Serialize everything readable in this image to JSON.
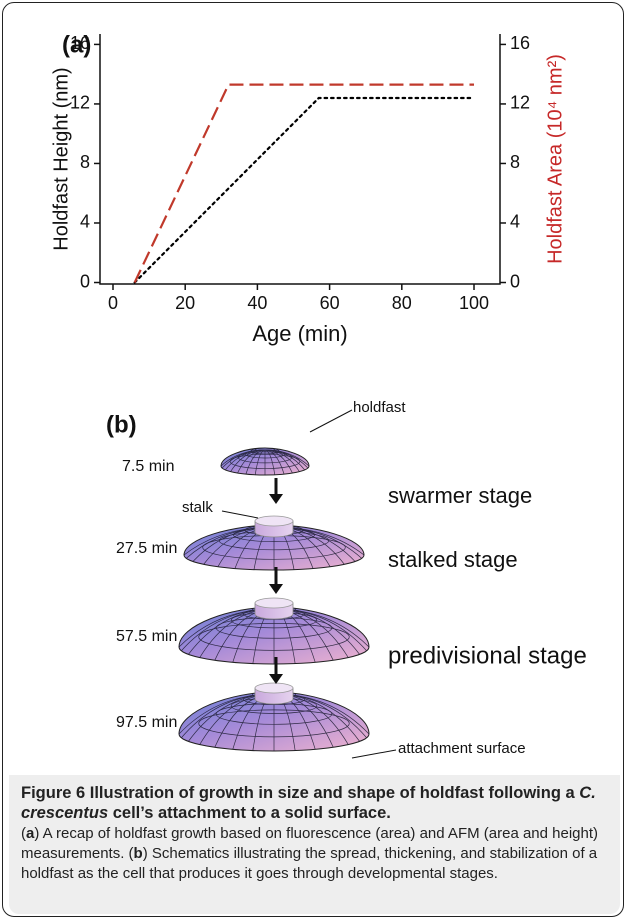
{
  "chart_data": {
    "type": "line",
    "panel_label": "(a)",
    "x_label": "Age (min)",
    "y_label": "Holdfast Height (nm)",
    "y2_label": "Holdfast Area (10⁴ nm²)",
    "y2_label_color": "#c62828",
    "xlim": [
      -3.6,
      107.2
    ],
    "xticks": [
      0,
      20,
      40,
      60,
      80,
      100
    ],
    "ylim": [
      -0.1,
      16.7
    ],
    "yticks": [
      0,
      4,
      8,
      12,
      16
    ],
    "y2lim": [
      -0.1,
      16.7
    ],
    "y2ticks": [
      0,
      4,
      8,
      12,
      16
    ],
    "grid": false,
    "series": [
      {
        "color": "#000000",
        "dash": "dotted",
        "x": [
          6,
          57,
          100
        ],
        "values": [
          0,
          12.4,
          12.4
        ]
      },
      {
        "color": "#c0392b",
        "dash": "dashed",
        "axis": "y2",
        "x": [
          6,
          32,
          100
        ],
        "values": [
          0,
          13.3,
          13.3
        ]
      }
    ]
  },
  "schematic": {
    "panel_label": "(b)",
    "times": [
      "7.5 min",
      "27.5 min",
      "57.5 min",
      "97.5 min"
    ],
    "holdfast_label": "holdfast",
    "stalk_label": "stalk",
    "surface_label": "attachment surface",
    "stages": [
      "swarmer stage",
      "stalked stage",
      "predivisional stage"
    ]
  },
  "caption": {
    "title": [
      "Figure 6 Illustration of growth in size and shape of holdfast following a ",
      "C. crescentus",
      " cell’s attachment to a solid surface."
    ],
    "body": [
      "(",
      "a",
      ") A recap of holdfast growth based on fluorescence (area) and AFM (area and height) measurements. (",
      "b",
      ") Schematics illustrating the spread, thickening, and stabilization of a holdfast as the cell that produces it goes through developmental stages."
    ]
  }
}
